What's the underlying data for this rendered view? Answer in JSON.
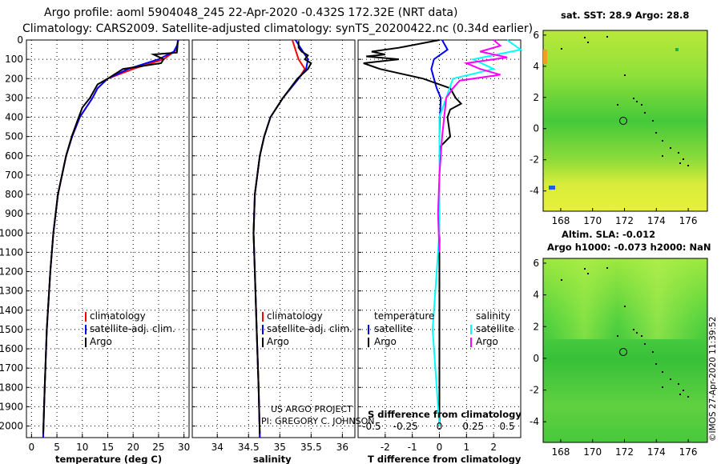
{
  "header": {
    "title_line1": "Argo profile: aoml 5904048_245 22-Apr-2020 -0.432S 172.32E (NRT data)",
    "title_line2": "Climatology: CARS2009. Satellite-adjusted climatology: synTS_20200422.nc (0.34d earlier)"
  },
  "colors": {
    "climatology": "#ff0000",
    "satellite": "#0000ff",
    "argo": "#000000",
    "sal_satellite": "#00ffff",
    "sal_argo": "#ff00ff"
  },
  "depth_axis": {
    "ticks": [
      "0",
      "100",
      "200",
      "300",
      "400",
      "500",
      "600",
      "700",
      "800",
      "900",
      "1000",
      "1100",
      "1200",
      "1300",
      "1400",
      "1500",
      "1600",
      "1700",
      "1800",
      "1900",
      "2000"
    ]
  },
  "credit": {
    "line1": "US ARGO PROJECT",
    "line2": "PI: GREGORY C. JOHNSON"
  },
  "stamp": "©IMOS 27-Apr-2020 11:39:52",
  "map_top": {
    "title": "sat. SST: 28.9 Argo: 28.8",
    "yticks": [
      "6",
      "4",
      "2",
      "0",
      "-2",
      "-4"
    ],
    "xticks": [
      "168",
      "170",
      "172",
      "174",
      "176"
    ]
  },
  "map_bottom": {
    "title1": "Altim. SLA: -0.012",
    "title2": "Argo h1000: -0.073 h2000: NaN",
    "yticks": [
      "6",
      "4",
      "2",
      "0",
      "-2",
      "-4"
    ],
    "xticks": [
      "168",
      "170",
      "172",
      "174",
      "176"
    ]
  },
  "chart_data": [
    {
      "type": "line",
      "name": "temperature",
      "xlabel": "temperature (deg C)",
      "ylabel": "depth",
      "xlim": [
        -1,
        31
      ],
      "ylim": [
        2060,
        0
      ],
      "xticks": [
        "0",
        "5",
        "10",
        "15",
        "20",
        "25",
        "30"
      ],
      "legend": [
        "climatology",
        "satellite-adj. clim.",
        "Argo"
      ],
      "series": [
        {
          "name": "climatology",
          "depth": [
            0,
            50,
            100,
            150,
            200,
            250,
            300,
            400,
            500,
            600,
            800,
            1000,
            1200,
            1500,
            1800,
            2060
          ],
          "values": [
            28.8,
            28.6,
            26,
            20,
            15,
            13,
            12,
            9.5,
            8,
            6.8,
            5.2,
            4.3,
            3.7,
            3.0,
            2.6,
            2.3
          ]
        },
        {
          "name": "satellite-adj. clim.",
          "depth": [
            0,
            30,
            60,
            100,
            150,
            200,
            250,
            300,
            400,
            500,
            600,
            800,
            1000,
            1200,
            1500,
            1800,
            2060
          ],
          "values": [
            28.9,
            28.6,
            28,
            25,
            19,
            15,
            13,
            12,
            9.5,
            8,
            6.8,
            5.2,
            4.3,
            3.7,
            3.0,
            2.6,
            2.3
          ]
        },
        {
          "name": "Argo",
          "depth": [
            5,
            40,
            65,
            75,
            100,
            120,
            150,
            200,
            230,
            300,
            350,
            400,
            500,
            600,
            800,
            1000,
            1200,
            1500,
            1800,
            2040
          ],
          "values": [
            28.8,
            28.7,
            28.6,
            24,
            26,
            25.5,
            18,
            15,
            13,
            11.5,
            10,
            9.3,
            7.9,
            6.8,
            5.2,
            4.3,
            3.7,
            3.0,
            2.6,
            2.3
          ]
        }
      ]
    },
    {
      "type": "line",
      "name": "salinity",
      "xlabel": "salinity",
      "ylabel": "depth",
      "xlim": [
        33.6,
        36.2
      ],
      "ylim": [
        2060,
        0
      ],
      "xticks": [
        "34",
        "34.5",
        "35",
        "35.5",
        "36"
      ],
      "legend": [
        "climatology",
        "satellite-adj. clim.",
        "Argo"
      ],
      "series": [
        {
          "name": "climatology",
          "depth": [
            0,
            50,
            100,
            150,
            200,
            300,
            400,
            500,
            600,
            800,
            1000,
            1200,
            1500,
            1800,
            2060
          ],
          "values": [
            35.2,
            35.25,
            35.3,
            35.4,
            35.3,
            35.05,
            34.85,
            34.75,
            34.68,
            34.6,
            34.58,
            34.6,
            34.63,
            34.66,
            34.68
          ]
        },
        {
          "name": "satellite-adj. clim.",
          "depth": [
            0,
            50,
            100,
            150,
            200,
            300,
            400,
            500,
            600,
            800,
            1000,
            1200,
            1500,
            1800,
            2060
          ],
          "values": [
            35.25,
            35.35,
            35.45,
            35.42,
            35.3,
            35.05,
            34.85,
            34.75,
            34.68,
            34.6,
            34.58,
            34.6,
            34.63,
            34.66,
            34.68
          ]
        },
        {
          "name": "Argo",
          "depth": [
            5,
            40,
            60,
            80,
            100,
            120,
            150,
            180,
            200,
            300,
            400,
            500,
            600,
            800,
            1000,
            1200,
            1500,
            1800,
            2040
          ],
          "values": [
            35.3,
            35.3,
            35.35,
            35.45,
            35.4,
            35.5,
            35.45,
            35.35,
            35.28,
            35.05,
            34.85,
            34.75,
            34.68,
            34.6,
            34.58,
            34.6,
            34.63,
            34.66,
            34.68
          ]
        }
      ]
    },
    {
      "type": "line",
      "name": "difference",
      "xlabel": "T difference from climatology",
      "xlabel_top": "S difference from climatology",
      "xlim": [
        -3,
        3
      ],
      "ylim": [
        2060,
        0
      ],
      "xticks": [
        "-2",
        "-1",
        "0",
        "1",
        "2"
      ],
      "xticks_top": [
        "-0.5",
        "-0.25",
        "0",
        "0.25",
        "0.5"
      ],
      "legend_left_title": "temperature",
      "legend_right_title": "salinity",
      "legend_left": [
        "satellite",
        "Argo"
      ],
      "legend_right": [
        "satellite",
        "Argo"
      ],
      "series": [
        {
          "name": "T satellite",
          "depth": [
            0,
            50,
            100,
            150,
            200,
            250,
            300,
            400,
            500,
            600,
            800,
            1000,
            1500,
            2000
          ],
          "values": [
            0.1,
            0.3,
            -0.2,
            -0.3,
            -0.2,
            -0.1,
            0.05,
            0.02,
            0.0,
            0.0,
            0.0,
            0.0,
            0.0,
            0.0
          ]
        },
        {
          "name": "T Argo",
          "depth": [
            0,
            40,
            60,
            75,
            85,
            100,
            120,
            150,
            200,
            250,
            300,
            330,
            360,
            400,
            500,
            550,
            600,
            800,
            1000,
            1500,
            2000
          ],
          "values": [
            0.0,
            -1.5,
            -2.5,
            -2.0,
            -2.7,
            -1.5,
            -2.8,
            -2.2,
            -0.6,
            0.4,
            0.6,
            0.8,
            0.4,
            0.3,
            0.4,
            0.05,
            0.0,
            0.0,
            0.0,
            0.0,
            0.0
          ]
        },
        {
          "name": "S satellite",
          "depth": [
            0,
            50,
            100,
            150,
            200,
            300,
            400,
            600,
            800,
            1000,
            1500,
            2000
          ],
          "values": [
            0.5,
            0.6,
            0.25,
            0.4,
            0.1,
            0.05,
            0.0,
            0.0,
            0.0,
            0.0,
            -0.05,
            0.0
          ]
        },
        {
          "name": "S Argo",
          "depth": [
            0,
            30,
            60,
            90,
            120,
            150,
            180,
            210,
            250,
            300,
            500,
            700,
            900,
            1100
          ],
          "values": [
            0.4,
            0.45,
            0.3,
            0.5,
            0.2,
            0.3,
            0.45,
            0.15,
            0.1,
            0.05,
            0.02,
            0.0,
            -0.01,
            0.0
          ]
        }
      ]
    }
  ]
}
